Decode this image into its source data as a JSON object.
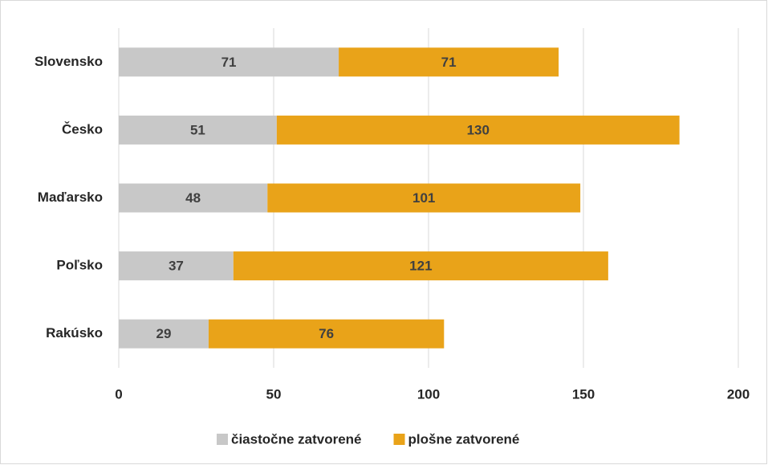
{
  "chart_data": {
    "type": "bar",
    "orientation": "horizontal",
    "stacked": true,
    "categories": [
      "Slovensko",
      "Česko",
      "Maďarsko",
      "Poľsko",
      "Rakúsko"
    ],
    "series": [
      {
        "name": "čiastočne zatvorené",
        "color": "#c8c8c8",
        "values": [
          71,
          51,
          48,
          37,
          29
        ]
      },
      {
        "name": "plošne zatvorené",
        "color": "#e9a319",
        "values": [
          71,
          130,
          101,
          121,
          76
        ]
      }
    ],
    "xlim": [
      0,
      200
    ],
    "xticks": [
      0,
      50,
      100,
      150,
      200
    ],
    "grid": true,
    "legend": "bottom"
  }
}
